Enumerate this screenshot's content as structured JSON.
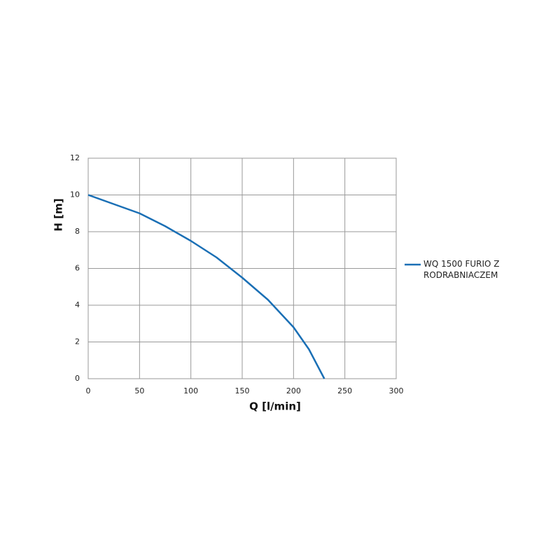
{
  "chart_data": {
    "type": "line",
    "x_label": "Q [l/min]",
    "y_label": "H [m]",
    "xlim": [
      0,
      300
    ],
    "xticks": [
      0,
      50,
      100,
      150,
      200,
      250,
      300
    ],
    "ylim": [
      0,
      12
    ],
    "yticks": [
      0,
      2,
      4,
      6,
      8,
      10,
      12
    ],
    "grid": true,
    "legend": "right",
    "x": [
      0,
      25,
      50,
      75,
      100,
      125,
      150,
      175,
      200,
      215,
      230
    ],
    "series": [
      {
        "name": "WQ 1500 FURIO Z RODRABNIACZEM",
        "color": "#1a6fb5",
        "values": [
          10,
          9.5,
          9,
          8.3,
          7.5,
          6.6,
          5.5,
          4.3,
          2.8,
          1.6,
          0
        ]
      }
    ]
  }
}
